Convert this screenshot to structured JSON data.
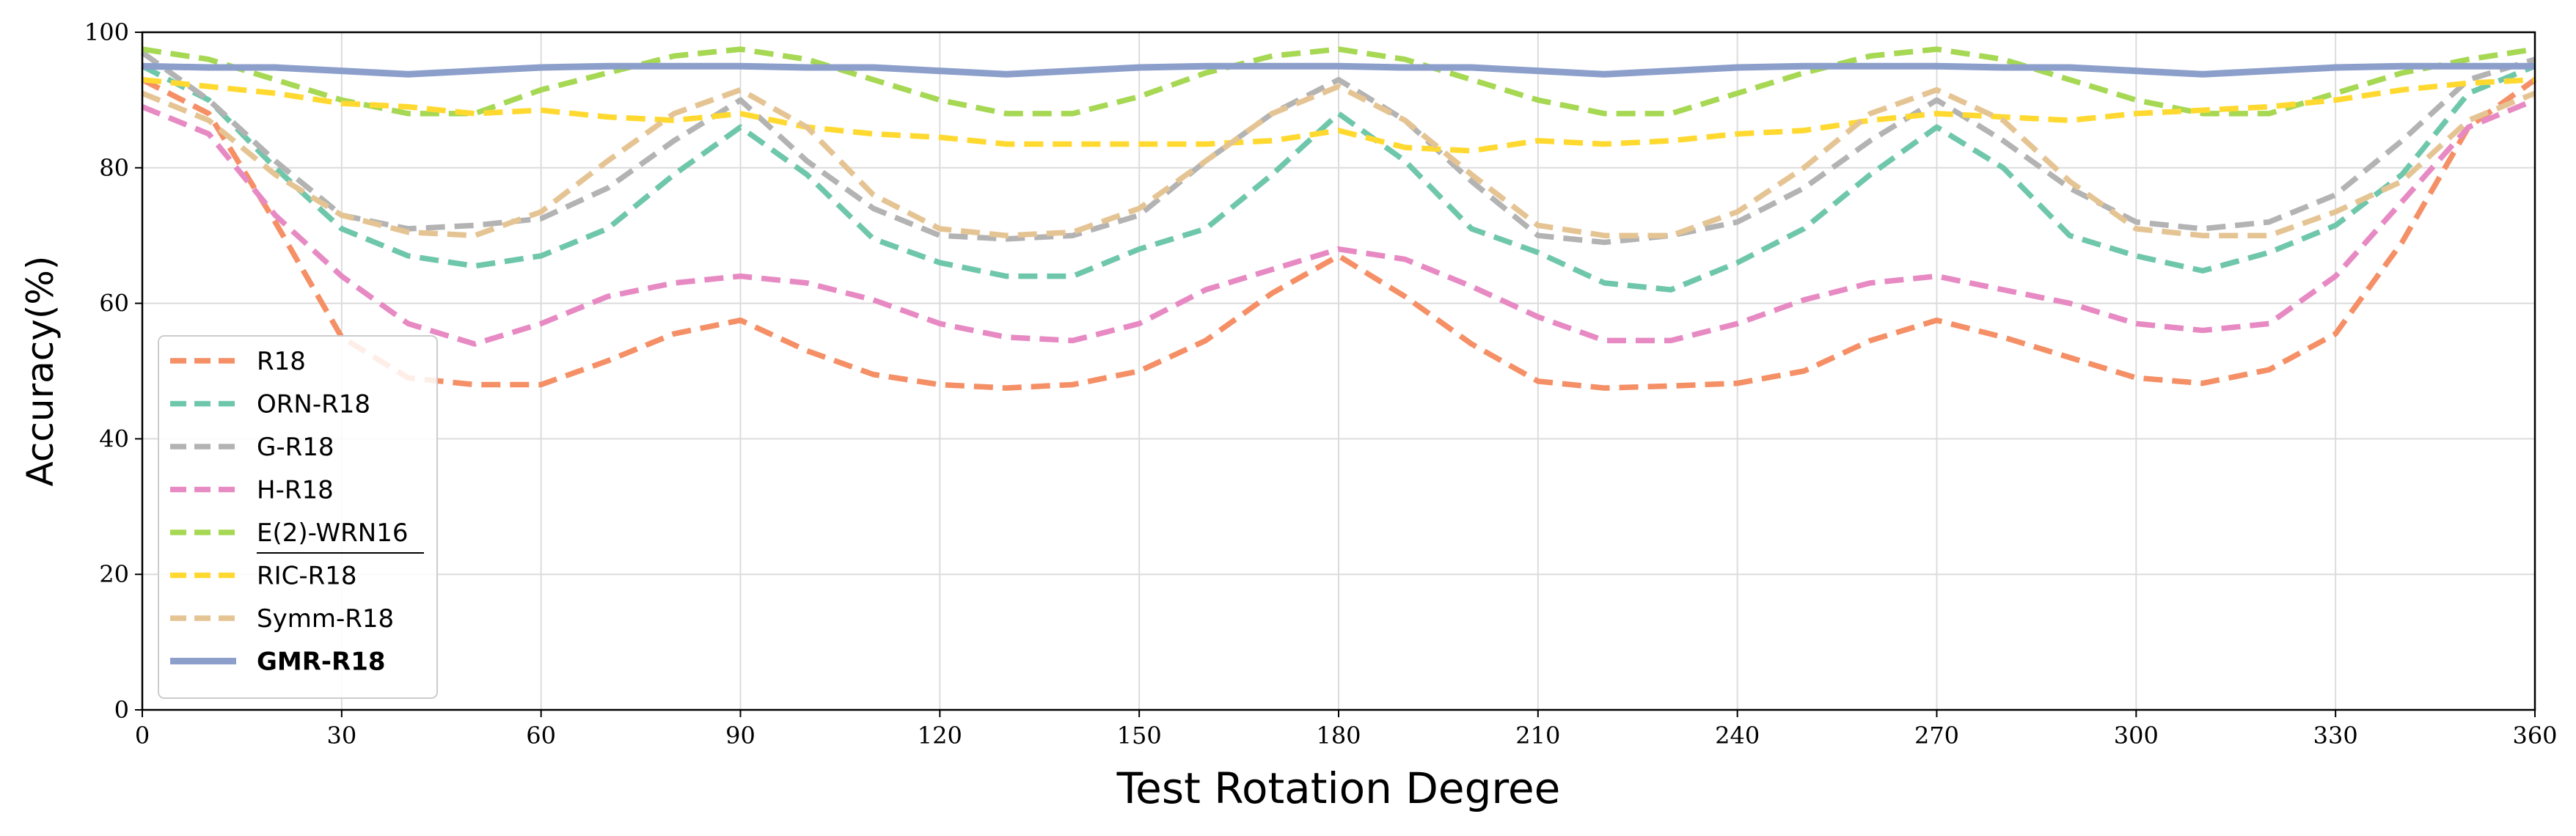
{
  "chart_data": {
    "type": "line",
    "title": "",
    "xlabel": "Test Rotation Degree",
    "ylabel": "Accuracy(%)",
    "xlim": [
      0,
      360
    ],
    "ylim": [
      0,
      100
    ],
    "grid": true,
    "legend_position": "center-left",
    "x_ticks": [
      "0",
      "30",
      "60",
      "90",
      "120",
      "150",
      "180",
      "210",
      "240",
      "270",
      "300",
      "330",
      "360"
    ],
    "y_ticks": [
      "0",
      "20",
      "40",
      "60",
      "80",
      "100"
    ],
    "x": [
      0,
      10,
      20,
      30,
      40,
      50,
      60,
      70,
      80,
      90,
      100,
      110,
      120,
      130,
      140,
      150,
      160,
      170,
      180,
      190,
      200,
      210,
      220,
      230,
      240,
      250,
      260,
      270,
      280,
      290,
      300,
      310,
      320,
      330,
      340,
      350,
      360
    ],
    "series": [
      {
        "name": "R18",
        "label": "R18",
        "color": "#f58f66",
        "style": "dashed",
        "values": [
          93,
          88,
          72,
          55,
          49,
          48,
          48,
          51.5,
          55.5,
          57.5,
          53,
          49.5,
          48,
          47.5,
          48,
          50,
          54.5,
          61.5,
          67,
          61,
          54,
          48.5,
          47.5,
          47.8,
          48.2,
          50,
          54.5,
          57.5,
          55,
          52,
          49,
          48.2,
          50.2,
          55.5,
          69,
          86,
          93
        ]
      },
      {
        "name": "ORN-R18",
        "label": "ORN-R18",
        "color": "#6fc7ab",
        "style": "dashed",
        "values": [
          95,
          90,
          80,
          71,
          67,
          65.5,
          67,
          71,
          79,
          86,
          79,
          69.5,
          66,
          64,
          64,
          68,
          71,
          79,
          88,
          81,
          71,
          67.5,
          63,
          62,
          66,
          71,
          79,
          86,
          80,
          70,
          67,
          64.8,
          67.5,
          71.5,
          79,
          91,
          95
        ]
      },
      {
        "name": "G-R18",
        "label": "G-R18",
        "color": "#b3b3b3",
        "style": "dashed",
        "values": [
          97,
          90,
          81,
          73,
          71,
          71.5,
          72.5,
          77,
          84,
          90,
          81,
          74,
          70,
          69.5,
          70,
          73,
          81,
          88,
          93,
          87,
          78,
          70,
          69,
          70,
          72,
          77,
          84,
          90,
          84,
          77,
          72,
          71,
          72,
          76,
          84,
          93,
          96
        ]
      },
      {
        "name": "H-R18",
        "label": "H-R18",
        "color": "#e78ac3",
        "style": "dashed",
        "values": [
          89,
          85,
          73,
          64,
          57,
          54,
          57,
          61,
          63,
          64,
          63,
          60.5,
          57,
          55,
          54.5,
          57,
          62,
          65,
          68,
          66.5,
          62.5,
          58,
          54.5,
          54.5,
          57,
          60.5,
          63,
          64,
          62,
          60,
          57,
          56,
          57,
          64,
          75,
          86,
          90
        ]
      },
      {
        "name": "E(2)-WRN16",
        "label": "E(2)-WRN16",
        "color": "#a6d853",
        "style": "dashed",
        "values": [
          97.5,
          96,
          93,
          90,
          88,
          88,
          91.5,
          94,
          96.5,
          97.5,
          96,
          93,
          90,
          88,
          88,
          90.5,
          94,
          96.5,
          97.5,
          96,
          93,
          90,
          88,
          88,
          91,
          94,
          96.5,
          97.5,
          96,
          93,
          90,
          88,
          88,
          91,
          94,
          96,
          97.5
        ]
      },
      {
        "name": "RIC-R18",
        "label": "RIC-R18",
        "color": "#ffd92f",
        "style": "dashed",
        "values": [
          93,
          92,
          91,
          89.5,
          89,
          88,
          88.5,
          87.5,
          87,
          88,
          86,
          85,
          84.5,
          83.5,
          83.5,
          83.5,
          83.5,
          84,
          85.5,
          83,
          82.5,
          84,
          83.5,
          84,
          85,
          85.5,
          87,
          88,
          87.5,
          87,
          88,
          88.5,
          89,
          90,
          91.5,
          92.5,
          93
        ]
      },
      {
        "name": "Symm-R18",
        "label": "Symm-R18",
        "color": "#e5c494",
        "style": "dashed",
        "values": [
          91,
          87,
          79,
          73,
          70.5,
          70,
          73.5,
          81,
          88,
          91.5,
          86,
          76,
          71,
          70,
          70.5,
          74,
          81,
          88,
          92,
          87,
          79,
          71.5,
          70,
          70,
          73.5,
          80,
          88,
          91.5,
          87,
          78,
          71,
          70,
          70,
          73.5,
          78,
          87,
          91
        ]
      },
      {
        "name": "GMR-R18",
        "label": "GMR-R18",
        "color": "#8c9fcb",
        "style": "solid",
        "values": [
          95,
          94.8,
          94.8,
          94.3,
          93.8,
          94.3,
          94.8,
          95,
          95,
          95,
          94.8,
          94.8,
          94.3,
          93.8,
          94.3,
          94.8,
          95,
          95,
          95,
          94.8,
          94.8,
          94.3,
          93.8,
          94.3,
          94.8,
          95,
          95,
          95,
          94.8,
          94.8,
          94.3,
          93.8,
          94.3,
          94.8,
          95,
          95,
          95
        ]
      }
    ]
  }
}
